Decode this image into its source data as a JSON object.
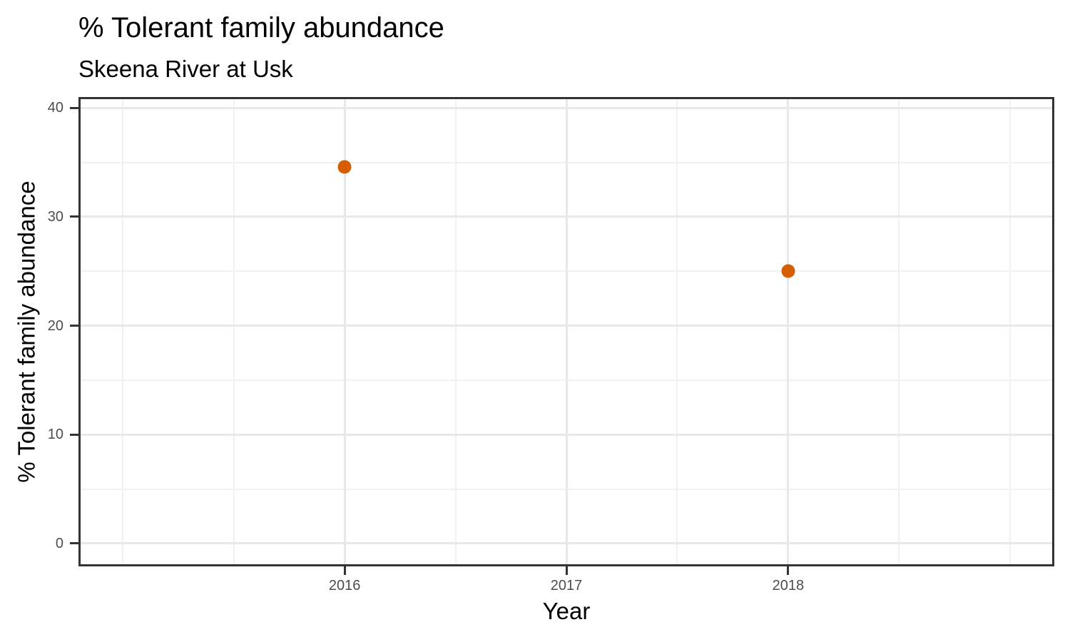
{
  "chart_data": {
    "type": "scatter",
    "title": "% Tolerant family abundance",
    "subtitle": "Skeena River at Usk",
    "xlabel": "Year",
    "ylabel": "% Tolerant family abundance",
    "points": [
      {
        "x": 2016,
        "y": 34.6
      },
      {
        "x": 2018,
        "y": 25.0
      }
    ],
    "x_breaks": [
      2016,
      2017,
      2018
    ],
    "x_tick_labels": [
      "2016",
      "2017",
      "2018"
    ],
    "x_minor_breaks": [
      2015,
      2015.5,
      2016.5,
      2017.5,
      2018.5,
      2019
    ],
    "y_breaks": [
      0,
      10,
      20,
      30,
      40
    ],
    "y_tick_labels": [
      "0",
      "10",
      "20",
      "30",
      "40"
    ],
    "y_minor_breaks": [
      5,
      15,
      25,
      35
    ],
    "xlim": [
      2014.8,
      2019.2
    ],
    "ylim": [
      -2.1,
      41.0
    ],
    "grid": true,
    "legend": false,
    "colors": {
      "point": "#D55E00",
      "grid_major": "#E8E8E8",
      "grid_minor": "#F1F1F1",
      "axis": "#333333",
      "tick_label": "#4D4D4D",
      "text": "#000000",
      "panel_background": "#FFFFFF"
    }
  }
}
